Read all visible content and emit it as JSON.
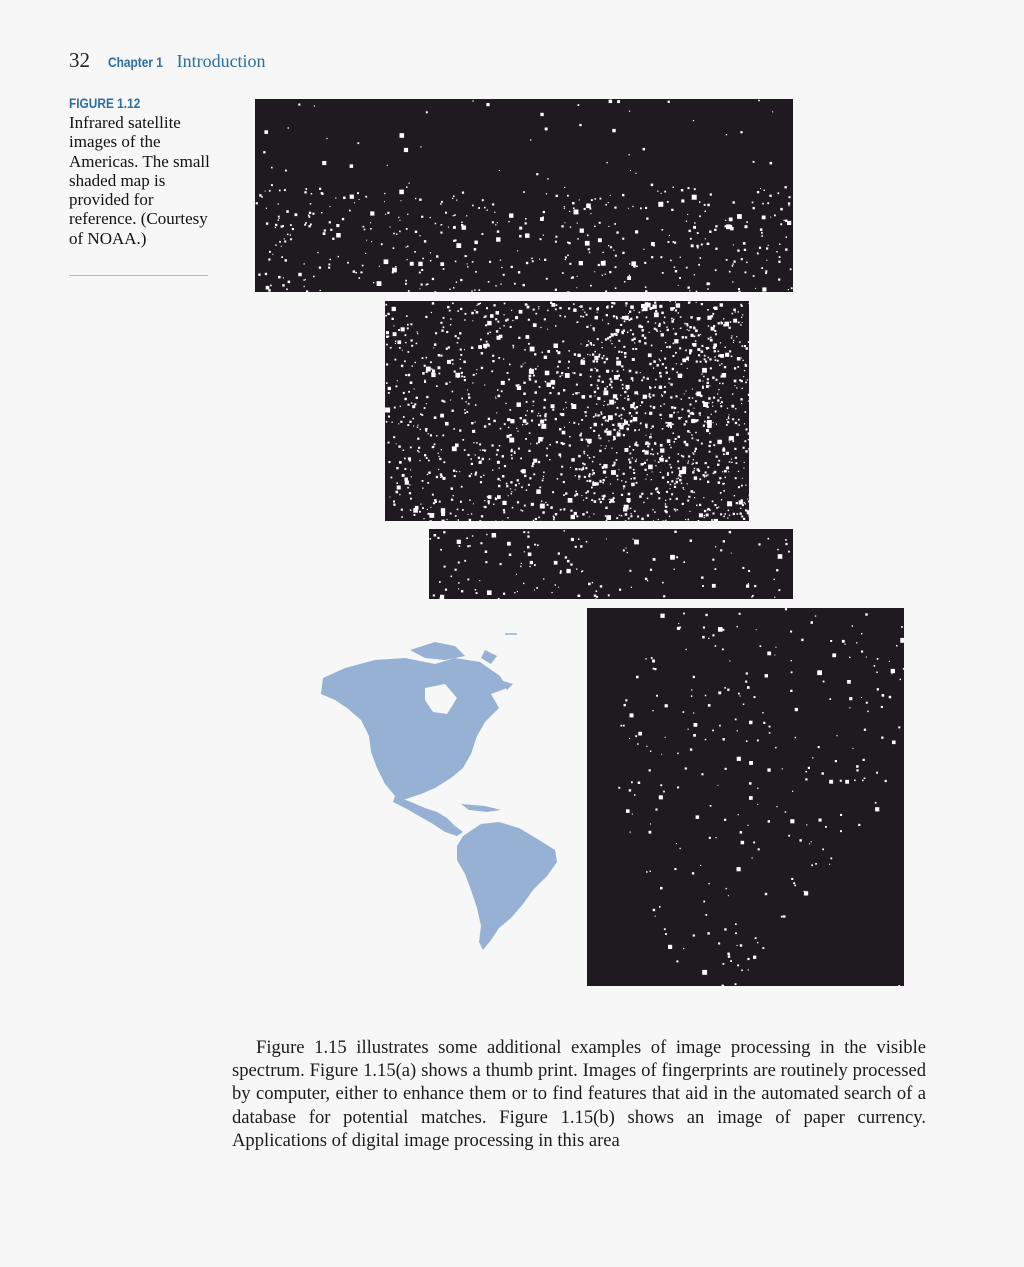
{
  "header": {
    "page_number": "32",
    "chapter_label": "Chapter 1",
    "chapter_title": "Introduction"
  },
  "figure": {
    "label": "FIGURE 1.12",
    "caption": "Infrared satellite images of the Americas. The small shaded map is provided for reference. (Courtesy of NOAA.)"
  },
  "colors": {
    "accent": "#2b6ea6",
    "panel_bg": "#1e1a20",
    "map_fill": "#97b1d5",
    "lights": "#ffffff"
  },
  "body": {
    "paragraph": "Figure 1.15 illustrates some additional examples of image processing in the visible spectrum. Figure 1.15(a) shows a thumb print. Images of fingerprints are routinely processed by computer, either to enhance them or to find features that aid in the automated search of a database for potential matches. Figure 1.15(b) shows an image of paper currency. Applications of digital image processing in this area"
  }
}
